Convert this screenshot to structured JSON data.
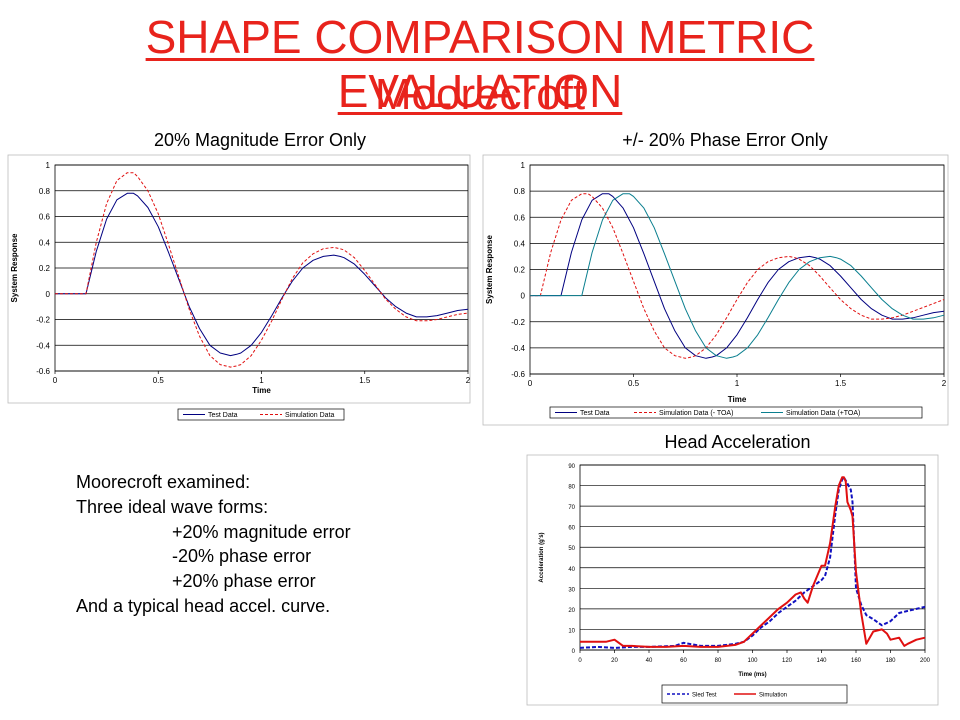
{
  "header": {
    "title": "SHAPE COMPARISON METRIC EVALUATION",
    "subtitle": "Moorecroft"
  },
  "notes": {
    "line1": "Moorecroft examined:",
    "line2": "Three ideal wave forms:",
    "line3": "+20% magnitude error",
    "line4": "-20% phase error",
    "line5": "+20% phase error",
    "line6": "And a typical head accel. curve."
  },
  "colors": {
    "title": "#e8231c",
    "test": "#000080",
    "simulation": "#e01010",
    "teal": "#0a7f8f"
  },
  "chart_data": [
    {
      "type": "line",
      "title": "20% Magnitude Error Only",
      "xlabel": "Time",
      "ylabel": "System Response",
      "xlim": [
        0,
        2
      ],
      "ylim": [
        -0.6,
        1
      ],
      "x_ticks": [
        "0",
        "0.5",
        "1",
        "1.5",
        "2"
      ],
      "y_ticks": [
        "-0.6",
        "-0.4",
        "-0.2",
        "0",
        "0.2",
        "0.4",
        "0.6",
        "0.8",
        "1"
      ],
      "legend": "bottom",
      "series": [
        {
          "name": "Test Data",
          "style": "solid",
          "color": "#000080",
          "x": [
            0.0,
            0.15,
            0.2,
            0.25,
            0.3,
            0.35,
            0.38,
            0.4,
            0.45,
            0.5,
            0.55,
            0.6,
            0.65,
            0.7,
            0.75,
            0.8,
            0.85,
            0.88,
            0.9,
            0.95,
            1.0,
            1.05,
            1.1,
            1.15,
            1.2,
            1.25,
            1.3,
            1.35,
            1.38,
            1.4,
            1.45,
            1.5,
            1.55,
            1.6,
            1.65,
            1.7,
            1.75,
            1.8,
            1.85,
            1.9,
            1.95,
            2.0
          ],
          "y": [
            0,
            0,
            0.33,
            0.58,
            0.73,
            0.78,
            0.78,
            0.76,
            0.67,
            0.52,
            0.32,
            0.11,
            -0.1,
            -0.27,
            -0.4,
            -0.46,
            -0.48,
            -0.47,
            -0.46,
            -0.4,
            -0.3,
            -0.17,
            -0.03,
            0.1,
            0.2,
            0.26,
            0.29,
            0.3,
            0.29,
            0.28,
            0.23,
            0.15,
            0.06,
            -0.03,
            -0.1,
            -0.15,
            -0.18,
            -0.18,
            -0.17,
            -0.15,
            -0.13,
            -0.12
          ]
        },
        {
          "name": "Simulation Data",
          "style": "dashed",
          "color": "#e01010",
          "x": [
            0.0,
            0.15,
            0.2,
            0.25,
            0.3,
            0.35,
            0.38,
            0.4,
            0.45,
            0.5,
            0.55,
            0.6,
            0.65,
            0.7,
            0.75,
            0.8,
            0.85,
            0.88,
            0.9,
            0.95,
            1.0,
            1.05,
            1.1,
            1.15,
            1.2,
            1.25,
            1.3,
            1.35,
            1.38,
            1.4,
            1.45,
            1.5,
            1.55,
            1.6,
            1.65,
            1.7,
            1.75,
            1.8,
            1.85,
            1.9,
            1.95,
            2.0
          ],
          "y": [
            0,
            0,
            0.4,
            0.7,
            0.88,
            0.94,
            0.94,
            0.91,
            0.8,
            0.62,
            0.38,
            0.13,
            -0.12,
            -0.33,
            -0.48,
            -0.55,
            -0.57,
            -0.56,
            -0.55,
            -0.48,
            -0.36,
            -0.21,
            -0.04,
            0.12,
            0.24,
            0.31,
            0.35,
            0.36,
            0.35,
            0.34,
            0.28,
            0.18,
            0.07,
            -0.04,
            -0.12,
            -0.18,
            -0.21,
            -0.21,
            -0.2,
            -0.18,
            -0.16,
            -0.15
          ]
        }
      ]
    },
    {
      "type": "line",
      "title": "+/- 20% Phase Error Only",
      "xlabel": "Time",
      "ylabel": "System Response",
      "xlim": [
        0,
        2
      ],
      "ylim": [
        -0.6,
        1
      ],
      "x_ticks": [
        "0",
        "0.5",
        "1",
        "1.5",
        "2"
      ],
      "y_ticks": [
        "-0.6",
        "-0.4",
        "-0.2",
        "0",
        "0.2",
        "0.4",
        "0.6",
        "0.8",
        "1"
      ],
      "legend": "bottom",
      "series": [
        {
          "name": "Test Data",
          "style": "solid",
          "color": "#000080",
          "x": [
            0.0,
            0.15,
            0.2,
            0.25,
            0.3,
            0.35,
            0.38,
            0.4,
            0.45,
            0.5,
            0.55,
            0.6,
            0.65,
            0.7,
            0.75,
            0.8,
            0.85,
            0.88,
            0.9,
            0.95,
            1.0,
            1.05,
            1.1,
            1.15,
            1.2,
            1.25,
            1.3,
            1.35,
            1.38,
            1.4,
            1.45,
            1.5,
            1.55,
            1.6,
            1.65,
            1.7,
            1.75,
            1.8,
            1.85,
            1.9,
            1.95,
            2.0
          ],
          "y": [
            0,
            0,
            0.33,
            0.58,
            0.73,
            0.78,
            0.78,
            0.76,
            0.67,
            0.52,
            0.32,
            0.11,
            -0.1,
            -0.27,
            -0.4,
            -0.46,
            -0.48,
            -0.47,
            -0.46,
            -0.4,
            -0.3,
            -0.17,
            -0.03,
            0.1,
            0.2,
            0.26,
            0.29,
            0.3,
            0.29,
            0.28,
            0.23,
            0.15,
            0.06,
            -0.03,
            -0.1,
            -0.15,
            -0.18,
            -0.18,
            -0.17,
            -0.15,
            -0.13,
            -0.12
          ]
        },
        {
          "name": "Simulation Data (- TOA)",
          "style": "dashed",
          "color": "#e01010",
          "x": [
            0.0,
            0.05,
            0.1,
            0.15,
            0.2,
            0.25,
            0.28,
            0.3,
            0.35,
            0.4,
            0.45,
            0.5,
            0.55,
            0.6,
            0.65,
            0.7,
            0.75,
            0.78,
            0.8,
            0.85,
            0.9,
            0.95,
            1.0,
            1.05,
            1.1,
            1.15,
            1.2,
            1.25,
            1.28,
            1.3,
            1.35,
            1.4,
            1.45,
            1.5,
            1.55,
            1.6,
            1.65,
            1.7,
            1.75,
            1.8,
            1.85,
            1.9,
            1.95,
            2.0
          ],
          "y": [
            0,
            0,
            0.33,
            0.58,
            0.73,
            0.78,
            0.78,
            0.76,
            0.67,
            0.52,
            0.32,
            0.11,
            -0.1,
            -0.27,
            -0.4,
            -0.46,
            -0.48,
            -0.47,
            -0.46,
            -0.4,
            -0.3,
            -0.17,
            -0.03,
            0.1,
            0.2,
            0.26,
            0.29,
            0.3,
            0.29,
            0.28,
            0.23,
            0.15,
            0.06,
            -0.03,
            -0.1,
            -0.15,
            -0.18,
            -0.18,
            -0.17,
            -0.15,
            -0.12,
            -0.09,
            -0.06,
            -0.03
          ]
        },
        {
          "name": "Simulation Data (+TOA)",
          "style": "solid",
          "color": "#0a7f8f",
          "x": [
            0.0,
            0.25,
            0.3,
            0.35,
            0.4,
            0.45,
            0.48,
            0.5,
            0.55,
            0.6,
            0.65,
            0.7,
            0.75,
            0.8,
            0.85,
            0.9,
            0.95,
            0.98,
            1.0,
            1.05,
            1.1,
            1.15,
            1.2,
            1.25,
            1.3,
            1.35,
            1.4,
            1.45,
            1.48,
            1.5,
            1.55,
            1.6,
            1.65,
            1.7,
            1.75,
            1.8,
            1.85,
            1.9,
            1.95,
            2.0
          ],
          "y": [
            0,
            0,
            0.33,
            0.58,
            0.73,
            0.78,
            0.78,
            0.76,
            0.67,
            0.52,
            0.32,
            0.11,
            -0.1,
            -0.27,
            -0.4,
            -0.46,
            -0.48,
            -0.47,
            -0.46,
            -0.4,
            -0.3,
            -0.17,
            -0.03,
            0.1,
            0.2,
            0.26,
            0.29,
            0.3,
            0.29,
            0.28,
            0.23,
            0.15,
            0.06,
            -0.03,
            -0.1,
            -0.15,
            -0.18,
            -0.18,
            -0.17,
            -0.15
          ]
        }
      ]
    },
    {
      "type": "line",
      "title": "Head Acceleration",
      "xlabel": "Time (ms)",
      "ylabel": "Acceleration (g's)",
      "xlim": [
        0,
        200
      ],
      "ylim": [
        0,
        90
      ],
      "x_ticks": [
        "0",
        "20",
        "40",
        "60",
        "80",
        "100",
        "120",
        "140",
        "160",
        "180",
        "200"
      ],
      "y_ticks": [
        "0",
        "10",
        "20",
        "30",
        "40",
        "50",
        "60",
        "70",
        "80",
        "90"
      ],
      "legend": "bottom",
      "series": [
        {
          "name": "Sled Test",
          "style": "dashed",
          "color": "#1010c0",
          "x": [
            0,
            10,
            20,
            30,
            40,
            55,
            60,
            70,
            80,
            90,
            95,
            100,
            105,
            110,
            115,
            120,
            125,
            130,
            135,
            140,
            142,
            145,
            148,
            150,
            152,
            153,
            155,
            157,
            158,
            160,
            163,
            166,
            170,
            175,
            180,
            185,
            190,
            195,
            200
          ],
          "y": [
            1,
            1.5,
            1,
            1.5,
            1.5,
            2,
            3.5,
            2,
            2,
            3,
            4,
            7,
            11,
            14,
            18,
            21,
            24,
            28,
            31,
            34,
            36,
            45,
            66,
            78,
            83,
            84,
            81,
            78,
            72,
            30,
            22,
            17,
            15,
            12,
            14,
            18,
            19,
            20,
            21
          ]
        },
        {
          "name": "Simulation",
          "style": "solid",
          "color": "#e01010",
          "x": [
            0,
            15,
            20,
            25,
            30,
            40,
            50,
            60,
            70,
            80,
            90,
            95,
            100,
            105,
            110,
            115,
            120,
            125,
            128,
            130,
            132,
            135,
            140,
            142,
            145,
            148,
            150,
            152,
            153,
            154,
            155,
            157,
            158,
            160,
            163,
            166,
            170,
            175,
            178,
            180,
            185,
            188,
            190,
            195,
            200
          ],
          "y": [
            4,
            4,
            5,
            2,
            2,
            1.5,
            1.5,
            2,
            1.5,
            1.5,
            2.5,
            4,
            8,
            12,
            16,
            20,
            23,
            27,
            28,
            25,
            23,
            31,
            41,
            41,
            52,
            70,
            80,
            84,
            84,
            82,
            72,
            68,
            65,
            38,
            18,
            3,
            9,
            10,
            8,
            5,
            6,
            2,
            3,
            5,
            6
          ]
        }
      ]
    }
  ]
}
